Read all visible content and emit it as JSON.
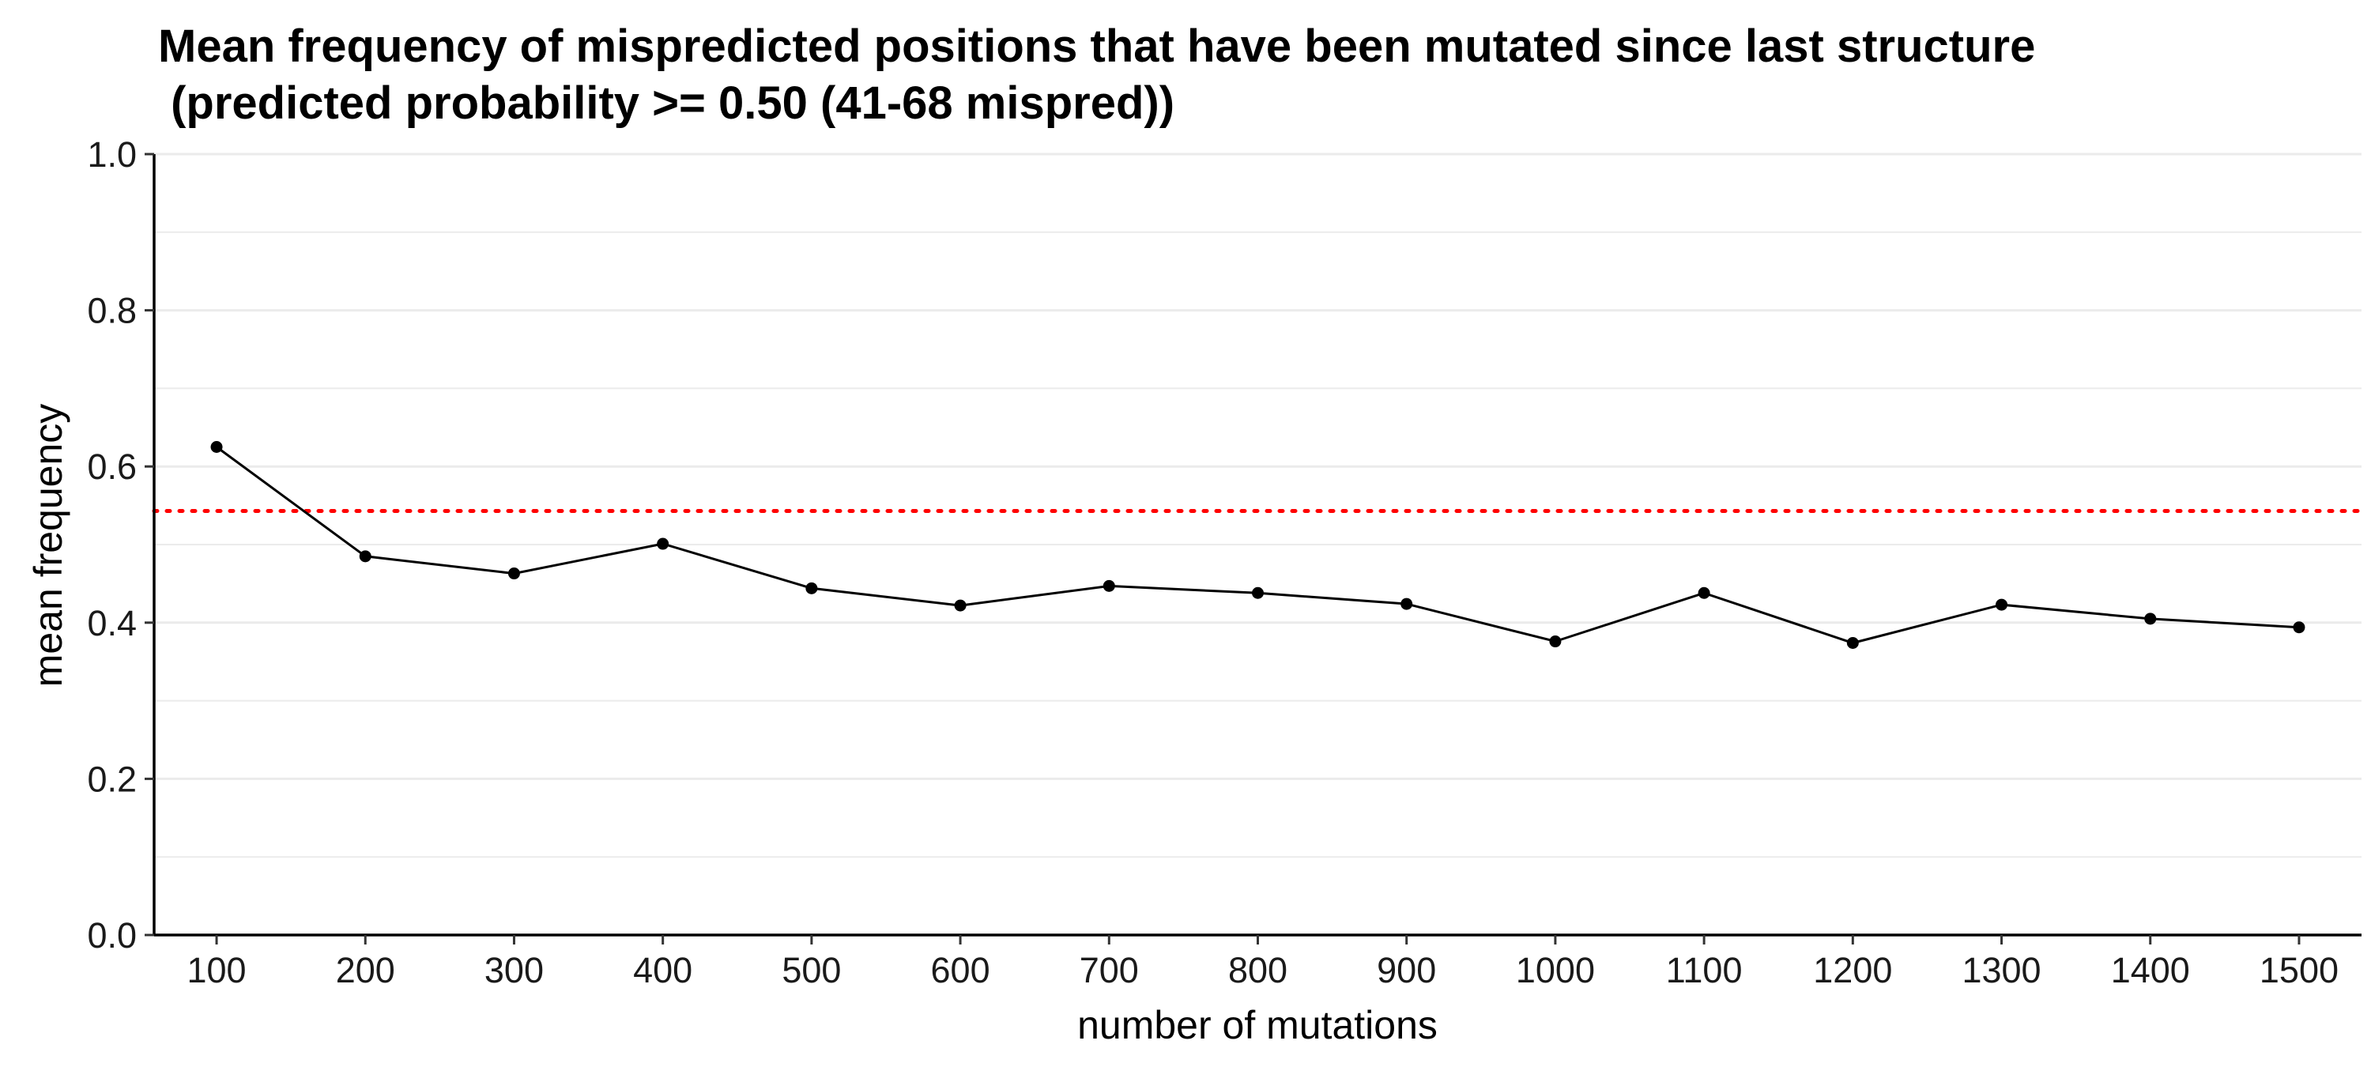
{
  "chart_data": {
    "type": "line",
    "title_line1": "Mean frequency of mispredicted positions that have been mutated since last structure",
    "title_line2": " (predicted probability >= 0.50 (41-68 mispred))",
    "xlabel": "number of mutations",
    "ylabel": "mean frequency",
    "x": [
      100,
      200,
      300,
      400,
      500,
      600,
      700,
      800,
      900,
      1000,
      1100,
      1200,
      1300,
      1400,
      1500
    ],
    "x_tick_labels": [
      "100",
      "200",
      "300",
      "400",
      "500",
      "600",
      "700",
      "800",
      "900",
      "1000",
      "1100",
      "1200",
      "1300",
      "1400",
      "1500"
    ],
    "y": [
      0.625,
      0.485,
      0.463,
      0.501,
      0.444,
      0.422,
      0.447,
      0.438,
      0.424,
      0.376,
      0.438,
      0.374,
      0.423,
      0.405,
      0.394
    ],
    "y_ticks": [
      0.0,
      0.2,
      0.4,
      0.6,
      0.8,
      1.0
    ],
    "y_tick_labels": [
      "0.0",
      "0.2",
      "0.4",
      "0.6",
      "0.8",
      "1.0"
    ],
    "ylim": [
      0,
      1
    ],
    "xlim": [
      58,
      1542
    ],
    "reference_line": {
      "y": 0.543,
      "style": "dotted"
    },
    "grid": {
      "horizontal_major": true,
      "horizontal_minor": true,
      "vertical": false
    },
    "colors": {
      "line": "#000000",
      "points": "#000000",
      "reference_line": "#ff0000",
      "grid": "#ebebeb"
    }
  }
}
